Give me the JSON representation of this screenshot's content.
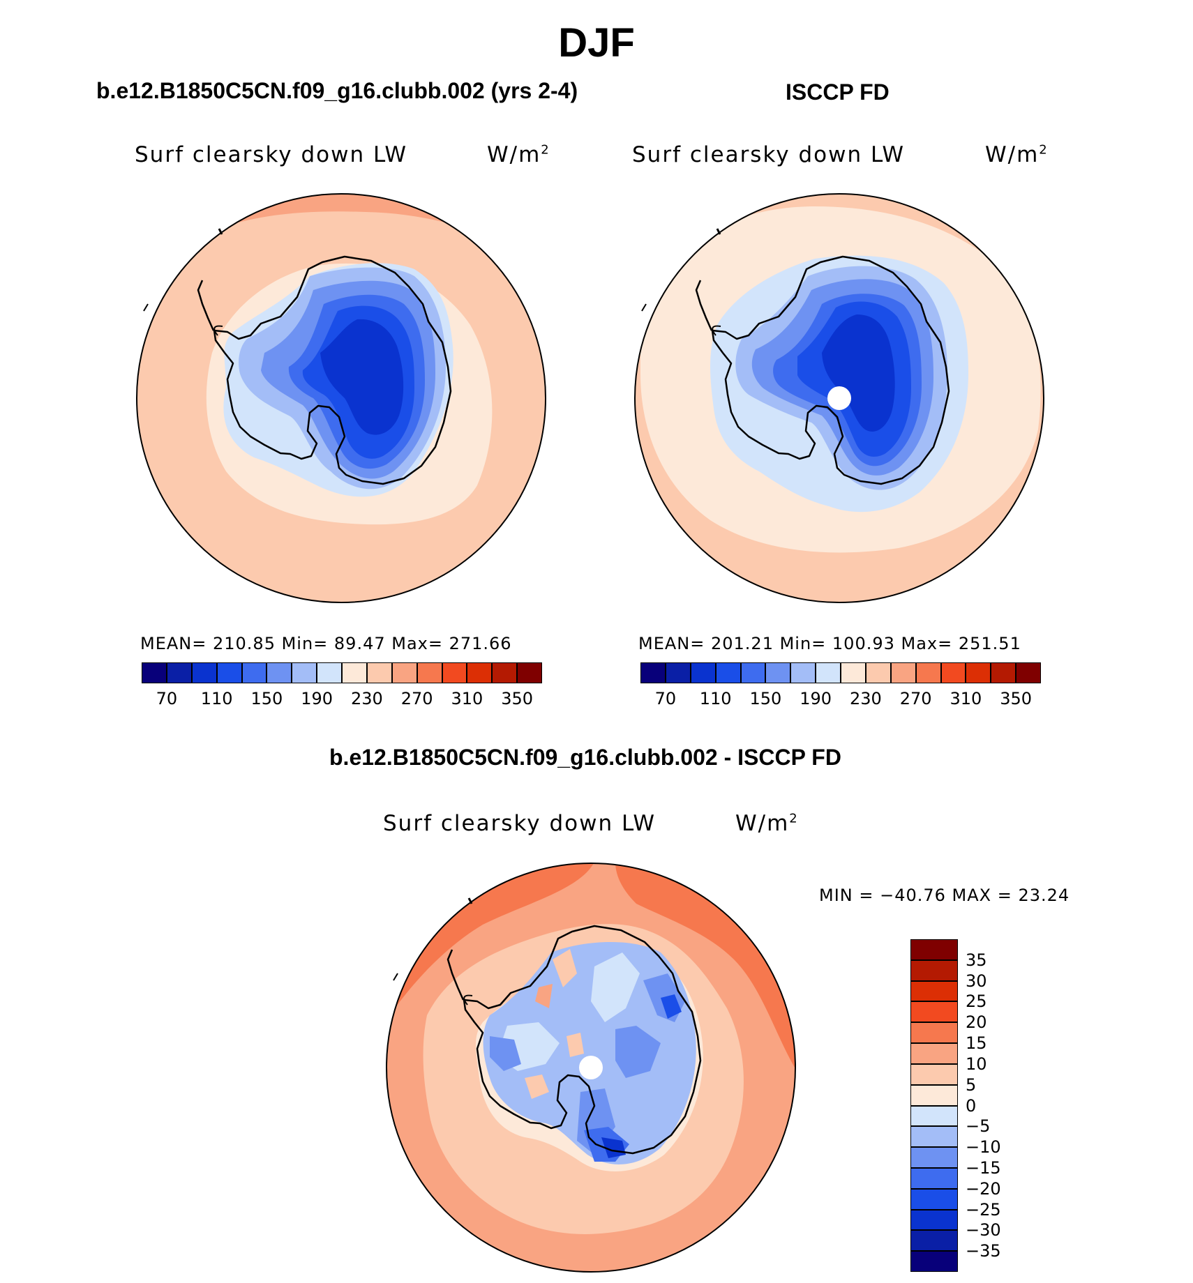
{
  "figure": {
    "season": "DJF",
    "model_title": "b.e12.B1850C5CN.f09_g16.clubb.002 (yrs 2-4)",
    "obs_title": "ISCCP FD",
    "diff_title": "b.e12.B1850C5CN.f09_g16.clubb.002 - ISCCP FD"
  },
  "panels": {
    "model": {
      "variable": "Surf clearsky down LW",
      "units_base": "W/m",
      "units_exp": "2",
      "stats": "MEAN=  210.85   Min=   89.47   Max=  271.66"
    },
    "obs": {
      "variable": "Surf clearsky down LW",
      "units_base": "W/m",
      "units_exp": "2",
      "stats": "MEAN=  201.21   Min=  100.93   Max=  251.51"
    },
    "diff": {
      "variable": "Surf clearsky down LW",
      "units_base": "W/m",
      "units_exp": "2",
      "stats": "MIN = −40.76  MAX =   23.24"
    }
  },
  "colorbars": {
    "abs": {
      "colors": [
        "#08007a",
        "#0a1fa6",
        "#0a33cf",
        "#1a4ee8",
        "#3e6cef",
        "#6e92f2",
        "#a3bdf7",
        "#d2e4fb",
        "#fde9d9",
        "#fccaae",
        "#f9a482",
        "#f6784e",
        "#f24a20",
        "#dc2f05",
        "#b41a02",
        "#7f0000"
      ],
      "tick_labels": [
        "70",
        "110",
        "150",
        "190",
        "230",
        "270",
        "310",
        "350"
      ]
    },
    "diff": {
      "colors": [
        "#7f0000",
        "#b41a02",
        "#dc2f05",
        "#f24a20",
        "#f6784e",
        "#f9a482",
        "#fccaae",
        "#fde9d9",
        "#d2e4fb",
        "#a3bdf7",
        "#6e92f2",
        "#3e6cef",
        "#1a4ee8",
        "#0a33cf",
        "#0a1fa6",
        "#08007a"
      ],
      "tick_labels": [
        "35",
        "30",
        "25",
        "20",
        "15",
        "10",
        "5",
        "0",
        "−5",
        "−10",
        "−15",
        "−20",
        "−25",
        "−30",
        "−35"
      ]
    }
  }
}
